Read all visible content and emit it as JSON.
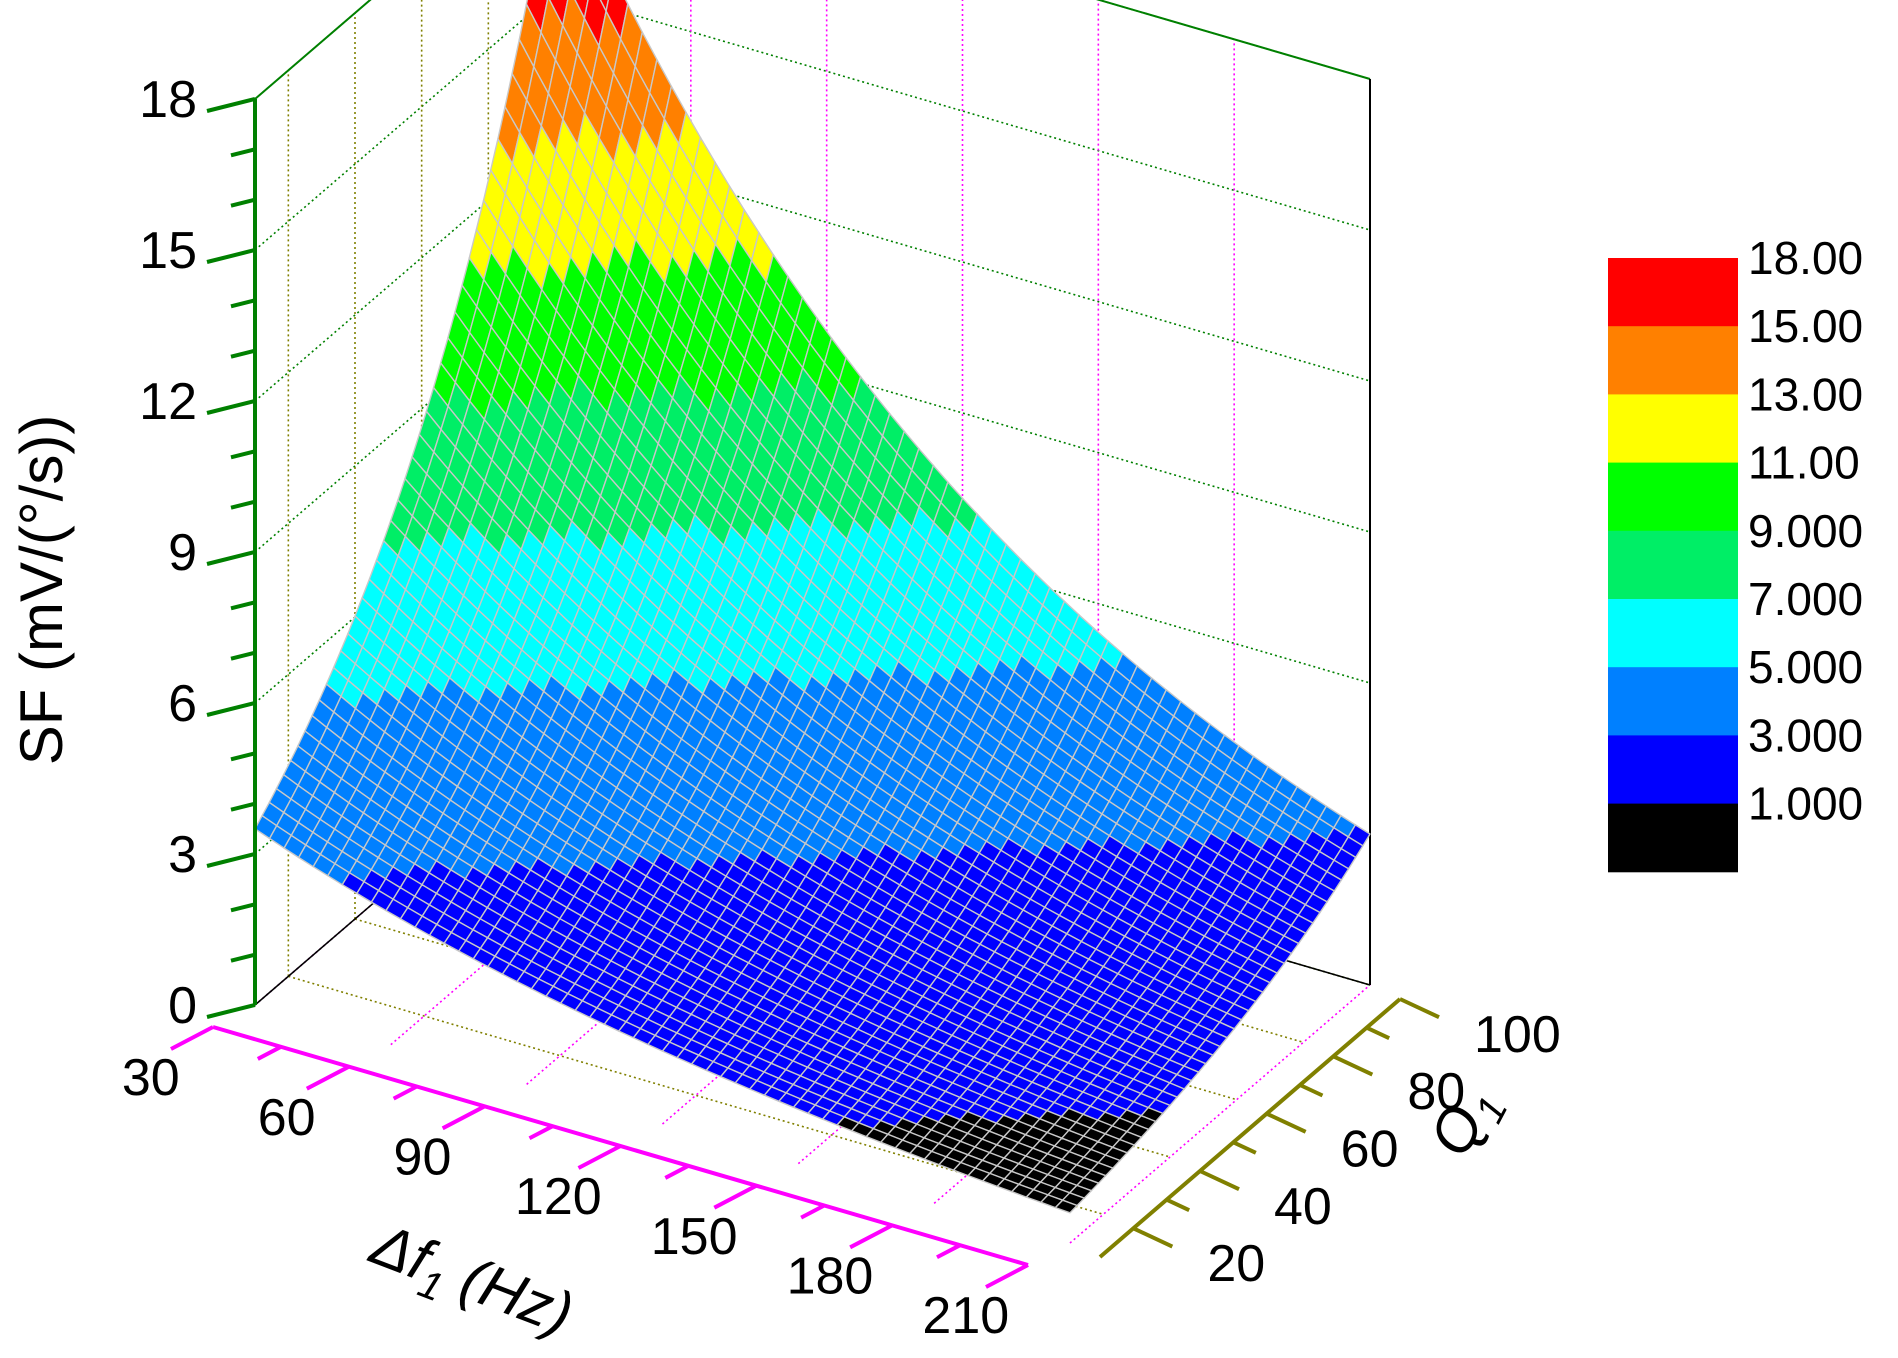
{
  "chart_data": {
    "type": "surface",
    "zlabel": "SF (mV/(°/s))",
    "xlabel": "Δf",
    "xlabel_sub": "1",
    "xlabel_unit": " (Hz)",
    "ylabel": "Q",
    "ylabel_sub": "1",
    "x_ticks": [
      30,
      60,
      90,
      120,
      150,
      180,
      210
    ],
    "y_ticks": [
      20,
      40,
      60,
      80,
      100
    ],
    "z_ticks": [
      0,
      3,
      6,
      9,
      12,
      15,
      18
    ],
    "xlim": [
      30,
      210
    ],
    "ylim": [
      10,
      100
    ],
    "zlim": [
      0,
      18
    ],
    "grid": true,
    "legend_placement": "right",
    "corner_values": [
      {
        "x": 30,
        "y": 10,
        "z": 3.5
      },
      {
        "x": 30,
        "y": 100,
        "z": 17.8
      },
      {
        "x": 210,
        "y": 10,
        "z": 0.6
      },
      {
        "x": 210,
        "y": 100,
        "z": 3.0
      }
    ],
    "colorbar": {
      "levels": [
        {
          "label": "18.00",
          "color": "#ff0000"
        },
        {
          "label": "15.00",
          "color": "#ff8000"
        },
        {
          "label": "13.00",
          "color": "#ffff00"
        },
        {
          "label": "11.00",
          "color": "#00ff00"
        },
        {
          "label": "9.000",
          "color": "#00ee66"
        },
        {
          "label": "7.000",
          "color": "#00ffff"
        },
        {
          "label": "5.000",
          "color": "#0080ff"
        },
        {
          "label": "3.000",
          "color": "#0000ff"
        },
        {
          "label": "1.000",
          "color": "#000000"
        }
      ]
    },
    "axis_colors": {
      "x": "#ff00ff",
      "y": "#808000",
      "z": "#008000",
      "mesh": "#c8c8c8"
    }
  }
}
